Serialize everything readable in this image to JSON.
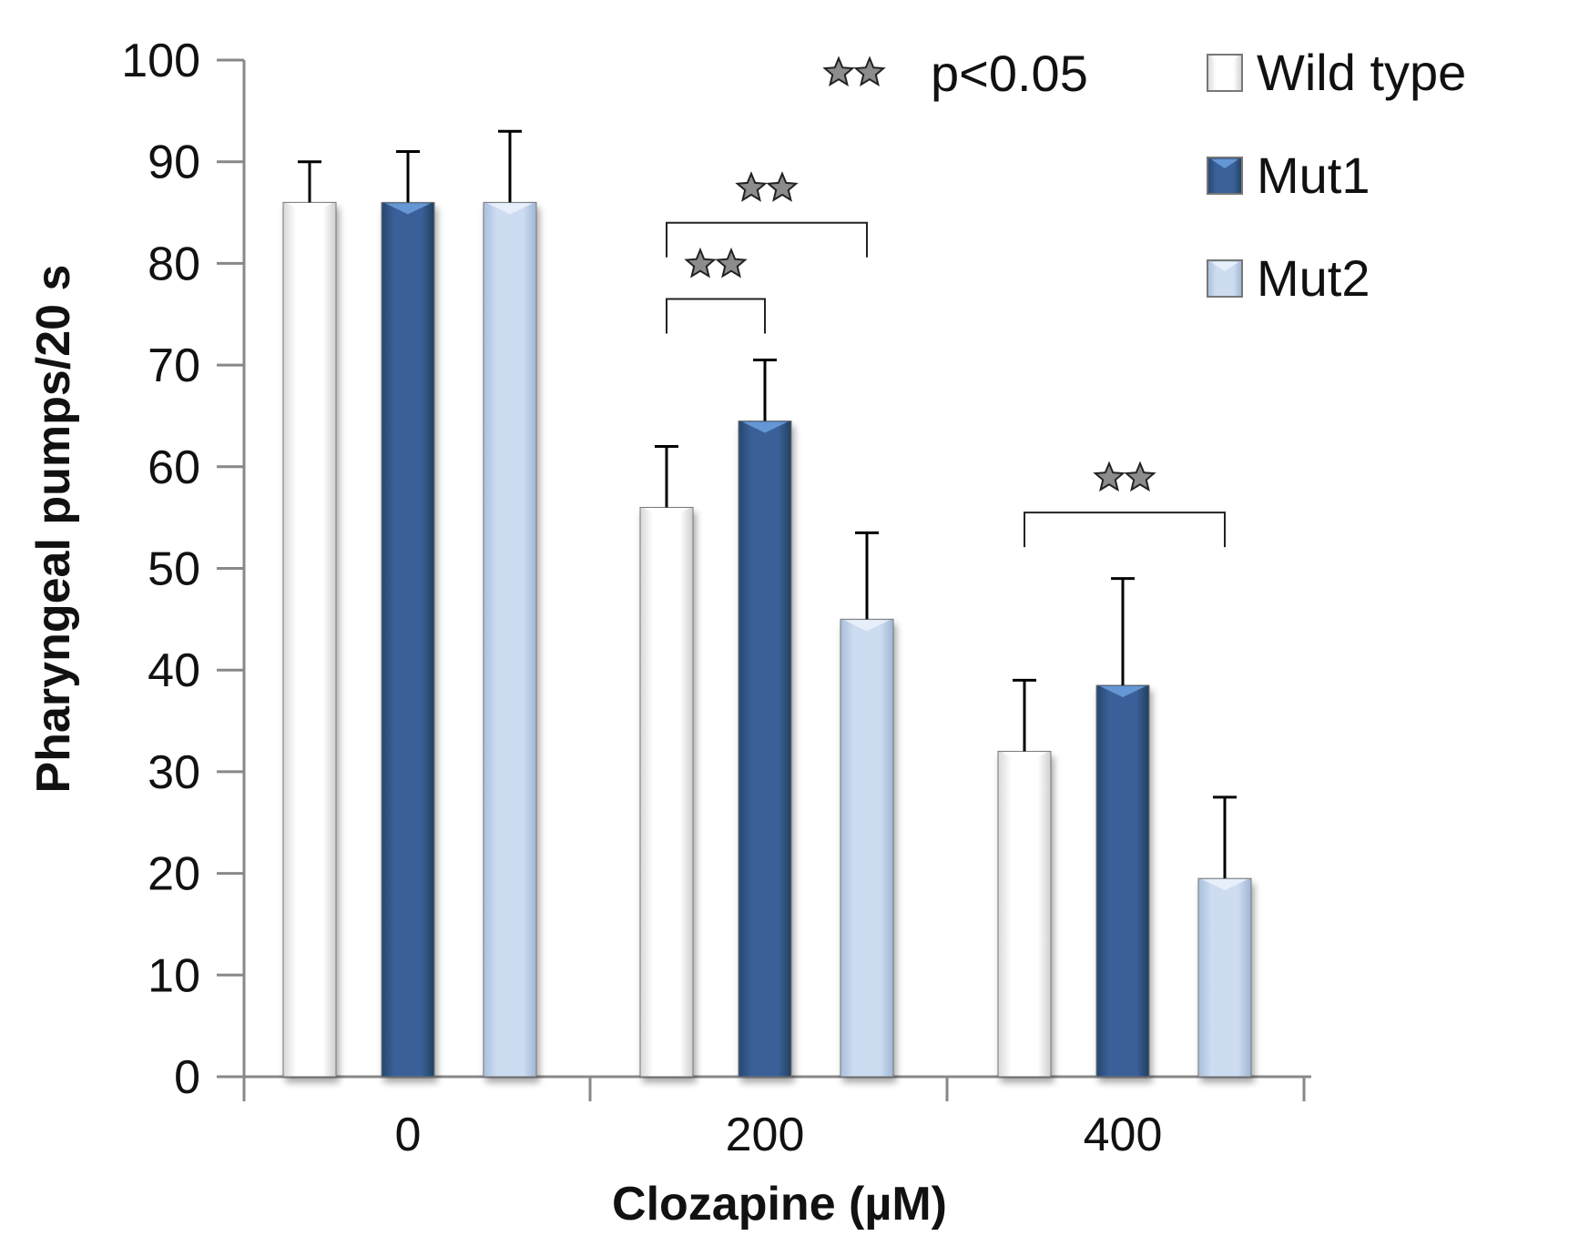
{
  "chart_data": {
    "type": "bar",
    "ylabel": "Pharyngeal pumps/20 s",
    "xlabel": "Clozapine (µM)",
    "ylim": [
      0,
      100
    ],
    "yticks": [
      0,
      10,
      20,
      30,
      40,
      50,
      60,
      70,
      80,
      90,
      100
    ],
    "categories": [
      "0",
      "200",
      "400"
    ],
    "series": [
      {
        "name": "Wild type",
        "color": "#f4f4f4",
        "values": [
          86,
          56,
          32
        ],
        "errors": [
          4,
          6,
          7
        ]
      },
      {
        "name": "Mut1",
        "color": "#34598f",
        "values": [
          86,
          64.5,
          38.5
        ],
        "errors": [
          5,
          6,
          10.5
        ]
      },
      {
        "name": "Mut2",
        "color": "#c5d7ee",
        "values": [
          86,
          45,
          19.5
        ],
        "errors": [
          7,
          8.5,
          8
        ]
      }
    ],
    "significance": {
      "legend_label": "p<0.05",
      "marker": "★★",
      "brackets": [
        {
          "category": "200",
          "from_series": "Wild type",
          "to_series": "Mut1",
          "y": 76.5
        },
        {
          "category": "200",
          "from_series": "Wild type",
          "to_series": "Mut2",
          "y": 84
        },
        {
          "category": "400",
          "from_series": "Wild type",
          "to_series": "Mut2",
          "y": 55.5
        }
      ]
    },
    "legend_position": "top-right",
    "grid": false
  }
}
